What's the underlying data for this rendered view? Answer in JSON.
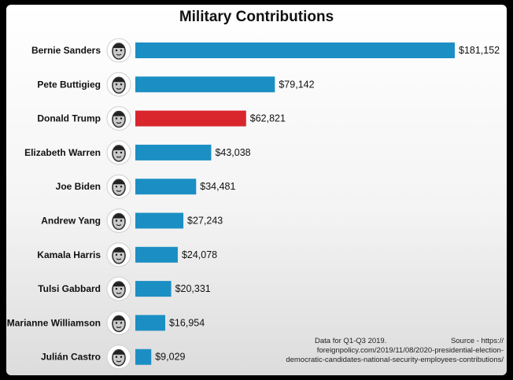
{
  "chart_data": {
    "type": "bar",
    "orientation": "horizontal",
    "title": "Military Contributions",
    "categories": [
      "Bernie Sanders",
      "Pete Buttigieg",
      "Donald Trump",
      "Elizabeth Warren",
      "Joe Biden",
      "Andrew Yang",
      "Kamala Harris",
      "Tulsi Gabbard",
      "Marianne Williamson",
      "Julián Castro"
    ],
    "values": [
      181152,
      79142,
      62821,
      43038,
      34481,
      27243,
      24078,
      20331,
      16954,
      9029
    ],
    "value_labels": [
      "$181,152",
      "$79,142",
      "$62,821",
      "$43,038",
      "$34,481",
      "$27,243",
      "$24,078",
      "$20,331",
      "$16,954",
      "$9,029"
    ],
    "colors": {
      "default": "#1b8fc4",
      "highlight": "#d8262c",
      "highlight_category": "Donald Trump"
    },
    "icons": [
      "portrait-icon",
      "portrait-icon",
      "portrait-icon",
      "portrait-icon",
      "portrait-icon",
      "portrait-icon",
      "portrait-icon",
      "portrait-icon",
      "portrait-icon",
      "portrait-icon"
    ],
    "xlim": [
      0,
      181152
    ],
    "grid": false,
    "legend": "none"
  },
  "note": {
    "data_line": "Data for Q1-Q3 2019.",
    "source_label": "Source - https://",
    "source_line2": "foreignpolicy.com/2019/11/08/2020-presidential-election-",
    "source_line3": "democratic-candidates-national-security-employees-contributions/"
  }
}
